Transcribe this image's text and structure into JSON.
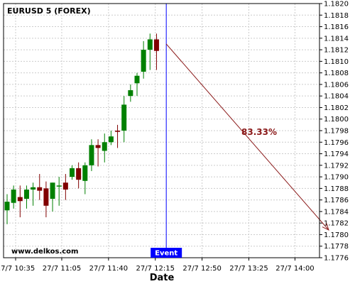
{
  "chart_data": {
    "type": "candlestick",
    "title": "EURUSD 5 (FOREX)",
    "watermark": "www.delkos.com",
    "xlabel": "Date",
    "ylim": [
      1.1776,
      1.182
    ],
    "y_ticks": [
      "1.1820",
      "1.1818",
      "1.1816",
      "1.1814",
      "1.1812",
      "1.1810",
      "1.1808",
      "1.1806",
      "1.1804",
      "1.1802",
      "1.1800",
      "1.1798",
      "1.1796",
      "1.1794",
      "1.1792",
      "1.1790",
      "1.1788",
      "1.1786",
      "1.1784",
      "1.1782",
      "1.1780",
      "1.1778",
      "1.1776"
    ],
    "x_ticks": [
      "27/7 10:35",
      "27/7 11:05",
      "27/7 11:40",
      "27/7 12:15",
      "27/7 12:50",
      "27/7 13:25",
      "27/7 14:00"
    ],
    "grid": true,
    "colors": {
      "up": "#008000",
      "down": "#800000",
      "event": "#0000ff",
      "arrow": "#8b1a1a",
      "grid": "#cccccc"
    },
    "candles": [
      {
        "o": 1.17842,
        "h": 1.1787,
        "l": 1.17818,
        "c": 1.17857
      },
      {
        "o": 1.17855,
        "h": 1.17885,
        "l": 1.17845,
        "c": 1.17878
      },
      {
        "o": 1.17865,
        "h": 1.17885,
        "l": 1.1783,
        "c": 1.17858
      },
      {
        "o": 1.17862,
        "h": 1.17885,
        "l": 1.17845,
        "c": 1.17878
      },
      {
        "o": 1.17878,
        "h": 1.1789,
        "l": 1.1785,
        "c": 1.17882
      },
      {
        "o": 1.17882,
        "h": 1.17905,
        "l": 1.1786,
        "c": 1.17876
      },
      {
        "o": 1.1788,
        "h": 1.17892,
        "l": 1.1783,
        "c": 1.1785
      },
      {
        "o": 1.17862,
        "h": 1.1789,
        "l": 1.1784,
        "c": 1.1789
      },
      {
        "o": 1.17885,
        "h": 1.179,
        "l": 1.1785,
        "c": 1.17885
      },
      {
        "o": 1.1789,
        "h": 1.17905,
        "l": 1.1786,
        "c": 1.17878
      },
      {
        "o": 1.179,
        "h": 1.1792,
        "l": 1.17895,
        "c": 1.17915
      },
      {
        "o": 1.17915,
        "h": 1.17925,
        "l": 1.1788,
        "c": 1.17895
      },
      {
        "o": 1.17893,
        "h": 1.17925,
        "l": 1.1787,
        "c": 1.1792
      },
      {
        "o": 1.1792,
        "h": 1.17965,
        "l": 1.1791,
        "c": 1.17955
      },
      {
        "o": 1.17955,
        "h": 1.17965,
        "l": 1.17918,
        "c": 1.1795
      },
      {
        "o": 1.17945,
        "h": 1.17975,
        "l": 1.17925,
        "c": 1.1796
      },
      {
        "o": 1.1796,
        "h": 1.1798,
        "l": 1.17955,
        "c": 1.1797
      },
      {
        "o": 1.1798,
        "h": 1.1799,
        "l": 1.1795,
        "c": 1.17978
      },
      {
        "o": 1.1798,
        "h": 1.1804,
        "l": 1.1796,
        "c": 1.18025
      },
      {
        "o": 1.1804,
        "h": 1.1806,
        "l": 1.1803,
        "c": 1.1805
      },
      {
        "o": 1.18062,
        "h": 1.1808,
        "l": 1.1804,
        "c": 1.18075
      },
      {
        "o": 1.18082,
        "h": 1.18135,
        "l": 1.1807,
        "c": 1.1812
      },
      {
        "o": 1.1812,
        "h": 1.18148,
        "l": 1.18085,
        "c": 1.18138
      },
      {
        "o": 1.18138,
        "h": 1.18148,
        "l": 1.18085,
        "c": 1.18118
      }
    ],
    "event": {
      "label": "Event",
      "index": 24.5
    },
    "projection": {
      "label": "83.33%",
      "from": {
        "index": 24.5,
        "y": 1.1813
      },
      "to": {
        "index": 49.5,
        "y": 1.17808
      }
    }
  }
}
